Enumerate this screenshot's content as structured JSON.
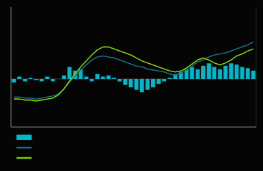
{
  "chart_data": {
    "type": "bar",
    "categories": [
      null,
      null,
      null,
      null,
      null,
      null,
      null,
      null,
      null,
      null,
      null,
      null,
      null,
      null,
      null,
      null,
      null,
      null,
      null,
      null,
      null,
      null,
      null,
      null,
      null,
      null,
      null,
      null,
      null,
      null,
      null,
      null,
      null,
      null,
      null,
      null,
      null,
      null,
      null,
      null,
      null,
      null,
      null,
      null
    ],
    "ylim": [
      -10,
      110
    ],
    "y2lim": [
      -40,
      60
    ],
    "tick_labels": false,
    "grid": false,
    "legend": "bottom",
    "series": [
      {
        "type": "bar",
        "axis": "y2",
        "color": "#00b8cc",
        "values": [
          -3,
          2,
          -2,
          1,
          -1,
          -2,
          2,
          -2,
          0,
          3,
          10,
          7,
          8,
          2,
          -2,
          4,
          2,
          3,
          1,
          -2,
          -5,
          -7,
          -9,
          -11,
          -9,
          -7,
          -4,
          -2,
          1,
          4,
          6,
          8,
          10,
          8,
          11,
          13,
          10,
          8,
          11,
          13,
          12,
          10,
          9,
          7
        ]
      },
      {
        "type": "line",
        "color": "#1a7080",
        "values": [
          20,
          20,
          19,
          19,
          18,
          19,
          20,
          21,
          23,
          28,
          35,
          41,
          47,
          52,
          57,
          60,
          61,
          60,
          59,
          57,
          55,
          53,
          51,
          50,
          48,
          47,
          46,
          45,
          43,
          42,
          44,
          47,
          51,
          55,
          57,
          60,
          62,
          63,
          64,
          66,
          68,
          70,
          72,
          75
        ]
      },
      {
        "type": "line",
        "color": "#80d400",
        "values": [
          18,
          18,
          17,
          17,
          16,
          17,
          18,
          19,
          22,
          28,
          36,
          43,
          50,
          56,
          62,
          67,
          70,
          70,
          68,
          66,
          64,
          62,
          59,
          56,
          54,
          52,
          50,
          48,
          46,
          45,
          46,
          49,
          53,
          57,
          59,
          57,
          54,
          52,
          54,
          57,
          61,
          63,
          66,
          68
        ]
      }
    ]
  }
}
